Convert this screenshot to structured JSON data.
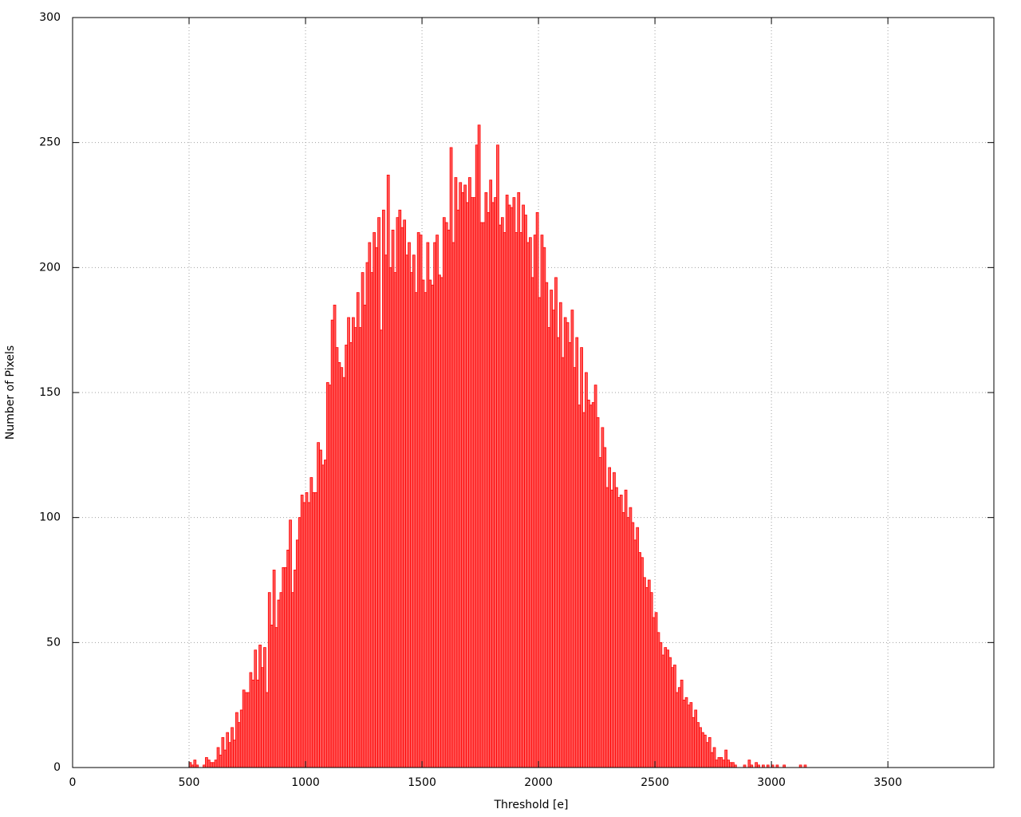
{
  "chart_data": {
    "type": "histogram",
    "xlabel": "Threshold [e]",
    "ylabel": "Number of Pixels",
    "color": "#ff5a5a",
    "edgecolor": "#ff0000",
    "grid": true,
    "xlim": [
      0,
      3955
    ],
    "ylim": [
      0,
      300
    ],
    "xticks": [
      0,
      500,
      1000,
      1500,
      2000,
      2500,
      3000,
      3500
    ],
    "yticks": [
      0,
      50,
      100,
      150,
      200,
      250,
      300
    ],
    "bins": [
      500,
      510,
      520,
      530,
      540,
      550,
      560,
      570,
      580,
      590,
      600,
      610,
      620,
      630,
      640,
      650,
      660,
      670,
      680,
      690,
      700,
      710,
      720,
      730,
      740,
      750,
      760,
      770,
      780,
      790,
      800,
      810,
      820,
      830,
      840,
      850,
      860,
      870,
      880,
      890,
      900,
      910,
      920,
      930,
      940,
      950,
      960,
      970,
      980,
      990,
      1000,
      1010,
      1020,
      1030,
      1040,
      1050,
      1060,
      1070,
      1080,
      1090,
      1100,
      1110,
      1120,
      1130,
      1140,
      1150,
      1160,
      1170,
      1180,
      1190,
      1200,
      1210,
      1220,
      1230,
      1240,
      1250,
      1260,
      1270,
      1280,
      1290,
      1300,
      1310,
      1320,
      1330,
      1340,
      1350,
      1360,
      1370,
      1380,
      1390,
      1400,
      1410,
      1420,
      1430,
      1440,
      1450,
      1460,
      1470,
      1480,
      1490,
      1500,
      1510,
      1520,
      1530,
      1540,
      1550,
      1560,
      1570,
      1580,
      1590,
      1600,
      1610,
      1620,
      1630,
      1640,
      1650,
      1660,
      1670,
      1680,
      1690,
      1700,
      1710,
      1720,
      1730,
      1740,
      1750,
      1760,
      1770,
      1780,
      1790,
      1800,
      1810,
      1820,
      1830,
      1840,
      1850,
      1860,
      1870,
      1880,
      1890,
      1900,
      1910,
      1920,
      1930,
      1940,
      1950,
      1960,
      1970,
      1980,
      1990,
      2000,
      2010,
      2020,
      2030,
      2040,
      2050,
      2060,
      2070,
      2080,
      2090,
      2100,
      2110,
      2120,
      2130,
      2140,
      2150,
      2160,
      2170,
      2180,
      2190,
      2200,
      2210,
      2220,
      2230,
      2240,
      2250,
      2260,
      2270,
      2280,
      2290,
      2300,
      2310,
      2320,
      2330,
      2340,
      2350,
      2360,
      2370,
      2380,
      2390,
      2400,
      2410,
      2420,
      2430,
      2440,
      2450,
      2460,
      2470,
      2480,
      2490,
      2500,
      2510,
      2520,
      2530,
      2540,
      2550,
      2560,
      2570,
      2580,
      2590,
      2600,
      2610,
      2620,
      2630,
      2640,
      2650,
      2660,
      2670,
      2680,
      2690,
      2700,
      2710,
      2720,
      2730,
      2740,
      2750,
      2760,
      2770,
      2780,
      2790,
      2800,
      2810,
      2820,
      2830,
      2840,
      2850,
      2860,
      2870,
      2880,
      2890,
      2900,
      2910,
      2920,
      2930,
      2940,
      2950,
      2960,
      2970,
      2980,
      2990,
      3000,
      3010,
      3020,
      3030,
      3040,
      3050,
      3060,
      3070,
      3080,
      3090,
      3100,
      3110,
      3120,
      3130,
      3140,
      3150,
      3160
    ],
    "values": [
      2,
      1,
      3,
      1,
      0,
      0,
      1,
      4,
      3,
      2,
      2,
      3,
      8,
      5,
      12,
      7,
      14,
      10,
      16,
      11,
      22,
      18,
      23,
      31,
      30,
      30,
      38,
      35,
      47,
      35,
      49,
      40,
      48,
      30,
      70,
      57,
      79,
      56,
      67,
      70,
      80,
      80,
      87,
      99,
      70,
      79,
      91,
      100,
      109,
      106,
      110,
      106,
      116,
      110,
      110,
      130,
      127,
      121,
      123,
      154,
      153,
      179,
      185,
      168,
      162,
      160,
      156,
      169,
      180,
      170,
      180,
      176,
      190,
      176,
      198,
      185,
      202,
      210,
      198,
      214,
      208,
      220,
      175,
      223,
      205,
      237,
      200,
      215,
      198,
      220,
      223,
      216,
      219,
      205,
      210,
      198,
      205,
      190,
      214,
      213,
      195,
      190,
      210,
      195,
      193,
      210,
      213,
      197,
      196,
      220,
      218,
      215,
      248,
      210,
      236,
      223,
      234,
      230,
      233,
      226,
      236,
      228,
      228,
      249,
      257,
      218,
      218,
      230,
      222,
      235,
      226,
      228,
      249,
      217,
      220,
      214,
      229,
      225,
      224,
      228,
      214,
      230,
      214,
      225,
      221,
      210,
      212,
      196,
      213,
      222,
      188,
      213,
      208,
      194,
      176,
      191,
      183,
      196,
      172,
      186,
      164,
      180,
      178,
      170,
      183,
      160,
      172,
      145,
      168,
      142,
      158,
      147,
      145,
      146,
      153,
      140,
      124,
      136,
      128,
      112,
      120,
      111,
      118,
      112,
      108,
      109,
      102,
      111,
      100,
      104,
      98,
      91,
      96,
      86,
      84,
      76,
      72,
      75,
      70,
      60,
      62,
      54,
      50,
      45,
      48,
      47,
      44,
      40,
      41,
      30,
      32,
      35,
      27,
      28,
      25,
      26,
      20,
      23,
      18,
      16,
      14,
      13,
      10,
      12,
      6,
      8,
      3,
      4,
      4,
      3,
      7,
      3,
      2,
      2,
      1,
      0,
      0,
      0,
      1,
      0,
      3,
      1,
      0,
      2,
      1,
      0,
      1,
      0,
      1,
      0,
      1,
      0,
      1,
      0,
      0,
      1,
      0,
      0,
      0,
      0,
      0,
      0,
      1,
      0,
      1,
      0
    ]
  }
}
